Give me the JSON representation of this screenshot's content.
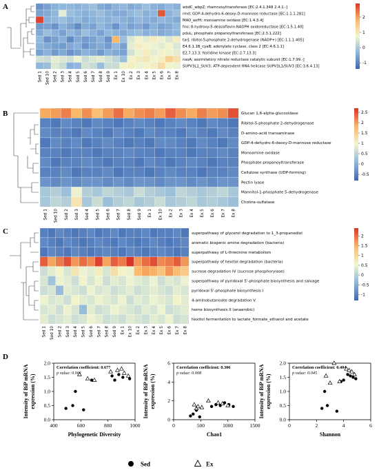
{
  "panel_labels": [
    "A",
    "B",
    "C",
    "D"
  ],
  "colors": {
    "low": "#3d66b0",
    "mid": "#f2f6cf",
    "high": "#d93428"
  },
  "chart_data": [
    {
      "type": "heatmap",
      "panel": "A",
      "columns": [
        "Sed 1",
        "Sed 10",
        "Sed 2",
        "Sed 3",
        "Sed 4",
        "Sed 5",
        "Sed 6",
        "Sed 7",
        "Sed 8",
        "Sed 9",
        "Ex 1",
        "Ex 10",
        "Ex 2",
        "Ex 3",
        "Ex 4",
        "Ex 5",
        "Ex 6",
        "Ex 7",
        "Ex 8"
      ],
      "rows": [
        "wbdC_wbpZ; rhamnosyltransferase [EC:2.4.1.348 2.4.1.-]",
        "rmd; GDP-4-dehydro-6-deoxy-D-mannose reductase [EC:1.1.1.281]",
        "MAO_aofH; monoamine oxidase [EC:1.4.3.4]",
        "fno; 8-hydroxy-5-deazaflavin:NADPH oxidoreductase [EC:1.5.1.40]",
        "pduL; phosphate propanoyltransferase [EC:2.3.1.222]",
        "tarJ; ribitol-5-phosphate 2-dehydrogenase (NADP+) [EC:1.1.1.405]",
        "E4.6.1.1B_cyaB; adenylate cyclase, class 2 [EC:4.6.1.1]",
        "E2.7.13.3; histidine kinase [EC:2.7.13.3]",
        "nasA; assimilatory nitrate reductase catalytic subunit [EC:1.7.99.-]",
        "SUPV3L1_SUV3; ATP-dependent RNA helicase SUPV3L1/SUV3 [EC:3.6.4.13]"
      ],
      "values": [
        [
          -0.8,
          -0.6,
          -0.4,
          -0.3,
          -0.3,
          -0.4,
          -0.3,
          -0.2,
          -0.5,
          -0.6,
          -0.4,
          -0.3,
          -0.5,
          -0.4,
          -0.2,
          -0.4,
          -0.5,
          -0.3,
          -0.4
        ],
        [
          -0.6,
          -0.5,
          -0.3,
          0.6,
          -0.2,
          -0.3,
          -0.4,
          -0.3,
          -0.2,
          -0.4,
          -0.5,
          -0.5,
          -0.3,
          -0.2,
          -0.4,
          -0.3,
          2.6,
          -0.4,
          -0.2
        ],
        [
          2.8,
          -0.4,
          -0.3,
          -0.2,
          -0.4,
          -0.3,
          -0.5,
          -0.4,
          -0.3,
          -0.4,
          -0.3,
          -0.4,
          -0.5,
          -0.3,
          -0.4,
          -0.5,
          -0.3,
          -0.4,
          -0.5
        ],
        [
          -0.7,
          -0.6,
          -0.8,
          -0.4,
          -0.6,
          -0.9,
          -0.5,
          -0.6,
          -0.3,
          -0.5,
          -0.8,
          -0.4,
          -0.6,
          -0.5,
          -0.7,
          -0.4,
          -0.6,
          -0.5,
          -0.3
        ],
        [
          -0.5,
          -0.2,
          -0.4,
          -0.6,
          -0.3,
          -0.5,
          -0.2,
          -0.4,
          -0.6,
          -0.3,
          -0.4,
          -0.5,
          -0.3,
          -0.2,
          -0.4,
          -0.3,
          -0.5,
          -0.4,
          -0.3
        ],
        [
          -0.3,
          -0.8,
          -0.6,
          -0.4,
          -0.9,
          -0.5,
          -0.7,
          -0.6,
          -0.4,
          -0.8,
          1.8,
          -0.2,
          0.5,
          0.8,
          0.6,
          0.9,
          0.7,
          0.5,
          0.9
        ],
        [
          -0.4,
          -0.5,
          -0.6,
          -0.7,
          -0.5,
          -0.4,
          -0.8,
          -0.6,
          -0.5,
          -0.7,
          -0.3,
          -0.6,
          0.6,
          0.9,
          0.8,
          0.7,
          0.6,
          0.8,
          0.5
        ],
        [
          -0.6,
          -0.4,
          -0.7,
          -0.5,
          -0.8,
          -0.6,
          -0.4,
          -0.5,
          -0.7,
          -0.4,
          -0.5,
          -0.6,
          0.4,
          0.7,
          0.9,
          0.6,
          0.8,
          0.7,
          0.6
        ],
        [
          0.4,
          0.3,
          0.6,
          0.5,
          0.4,
          0.7,
          0.3,
          0.5,
          0.6,
          0.4,
          0.2,
          -0.2,
          0.8,
          0.9,
          1.0,
          0.8,
          0.9,
          1.4,
          1.1
        ],
        [
          -0.3,
          -0.2,
          0.5,
          0.3,
          -0.4,
          -0.3,
          0.4,
          0.3,
          -0.2,
          0.3,
          0.3,
          0.8,
          0.9,
          0.7,
          0.8,
          0.9,
          1.2,
          0.8,
          0.7
        ]
      ],
      "colorbar": {
        "ticks": [
          2,
          1,
          0,
          -1
        ],
        "range": [
          -1.4,
          2.9
        ]
      }
    },
    {
      "type": "heatmap",
      "panel": "B",
      "columns": [
        "Sed 1",
        "Sed 10",
        "Sed 2",
        "Sed 3",
        "Sed 4",
        "Sed 5",
        "Sed 6",
        "Sed 7",
        "Sed 8",
        "Sed 9",
        "Ex 1",
        "Ex 10",
        "Ex 2",
        "Ex 3",
        "Ex 4",
        "Ex 5",
        "Ex 6",
        "Ex 7",
        "Ex 8"
      ],
      "rows": [
        "Glucan 1,6-alpha-glucosidase",
        "Ribitol-5-phosphate 2-dehydrogenase",
        "D-amino-acid transaminase",
        "GDP-4-dehydro-6-deoxy-D-mannose reductase",
        "Monoamine oxidase",
        "Phosphate propanoyltransferase",
        "Cellulose synthase (UDP-forming)",
        "Pectin lyase",
        "Mannitol-1-phosphate 5-dehydrogenase",
        "Choline-sulfatase"
      ],
      "values": [
        [
          1.9,
          2.0,
          2.2,
          1.8,
          2.1,
          1.7,
          2.0,
          2.3,
          1.9,
          2.1,
          2.2,
          2.0,
          2.4,
          2.1,
          1.9,
          2.2,
          2.0,
          2.1,
          2.5
        ],
        [
          -0.5,
          -0.6,
          -0.4,
          -0.5,
          -0.6,
          -0.4,
          -0.5,
          -0.6,
          -0.5,
          -0.4,
          -0.5,
          -0.6,
          -0.5,
          -0.4,
          -0.5,
          -0.6,
          -0.4,
          -0.5,
          -0.6
        ],
        [
          -0.4,
          -0.5,
          -0.5,
          -0.6,
          -0.4,
          -0.5,
          -0.6,
          -0.4,
          -0.5,
          -0.6,
          -0.4,
          -0.5,
          -0.5,
          -0.6,
          -0.4,
          -0.5,
          -0.6,
          -0.4,
          -0.5
        ],
        [
          -0.6,
          -0.4,
          -0.5,
          -0.4,
          -0.6,
          -0.5,
          -0.4,
          -0.5,
          -0.6,
          -0.5,
          -0.6,
          -0.4,
          -0.4,
          -0.5,
          -0.6,
          -0.4,
          -0.5,
          -0.6,
          -0.4
        ],
        [
          -0.5,
          -0.5,
          -0.6,
          -0.5,
          -0.5,
          -0.6,
          -0.5,
          -0.5,
          -0.4,
          -0.5,
          -0.5,
          -0.6,
          -0.5,
          -0.5,
          -0.6,
          -0.5,
          -0.5,
          -0.4,
          -0.5
        ],
        [
          -0.4,
          -0.6,
          -0.5,
          -0.5,
          -0.4,
          -0.5,
          -0.6,
          -0.5,
          -0.5,
          -0.6,
          -0.4,
          -0.5,
          -0.6,
          -0.5,
          -0.4,
          -0.5,
          -0.6,
          -0.5,
          -0.5
        ],
        [
          -0.5,
          -0.5,
          -0.4,
          -0.6,
          -0.5,
          -0.5,
          -0.4,
          -0.6,
          -0.5,
          -0.5,
          -0.6,
          -0.5,
          -0.4,
          -0.5,
          -0.5,
          -0.6,
          -0.5,
          -0.5,
          -0.4
        ],
        [
          -0.3,
          -0.4,
          -0.3,
          -0.4,
          -0.3,
          -0.3,
          -0.4,
          -0.3,
          -0.4,
          -0.3,
          -0.3,
          -0.4,
          -0.3,
          -0.3,
          -0.4,
          -0.3,
          -0.4,
          -0.3,
          -0.3
        ],
        [
          0.3,
          0.4,
          0.2,
          0.9,
          0.4,
          0.3,
          0.5,
          0.4,
          0.3,
          0.6,
          0.4,
          0.3,
          0.2,
          0.5,
          0.4,
          0.3,
          0.4,
          0.5,
          0.3
        ],
        [
          0.3,
          0.5,
          0.4,
          1.2,
          0.3,
          0.6,
          0.2,
          0.4,
          0.5,
          0.3,
          0.4,
          0.6,
          0.3,
          0.4,
          0.5,
          0.3,
          0.4,
          0.3,
          0.2
        ]
      ],
      "colorbar": {
        "ticks": [
          2.5,
          2,
          1.5,
          1,
          0.5,
          0,
          -0.5
        ],
        "range": [
          -0.8,
          2.7
        ]
      }
    },
    {
      "type": "heatmap",
      "panel": "C",
      "columns": [
        "Sed 1",
        "Sed 10",
        "Sed 2",
        "Sed 3",
        "Sed 4",
        "Sed 5",
        "Sed 6",
        "Sed 7",
        "Sed 8",
        "Sed 9",
        "Ex 1",
        "Ex 10",
        "Ex 2",
        "Ex 3",
        "Ex 4",
        "Ex 5",
        "Ex 6",
        "Ex 7",
        "Ex 8"
      ],
      "rows": [
        "superpathway of glycerol degradation to 1_3-propanediol",
        "aromatic biogenic amine degradation (bacteria)",
        "superpathway of L-threonine metabolism",
        "superpathway of hexitol degradation (bacteria)",
        "sucrose degradation IV (sucrose phosphorylase)",
        "superpathway of pyridoxal 5'-phosphate biosynthesis and salvage",
        "pyridoxal 5'-phosphate biosynthesis I",
        "4-aminobutanoate degradation V",
        "heme biosynthesis II (anaerobic)",
        "hexitol fermentation to lactate_formate_ethanol and acetate"
      ],
      "values": [
        [
          -1.0,
          -1.1,
          -0.9,
          -1.0,
          -1.1,
          -1.0,
          -0.9,
          -1.1,
          -1.0,
          -0.9,
          -1.1,
          -1.0,
          -1.0,
          -0.9,
          -1.1,
          -1.0,
          -1.0,
          -0.9,
          -1.1
        ],
        [
          -0.9,
          -1.0,
          -1.1,
          -0.9,
          -1.0,
          -1.1,
          -1.0,
          -0.9,
          -1.0,
          -1.1,
          -0.9,
          -1.0,
          -1.1,
          -1.0,
          -0.9,
          -1.0,
          -1.1,
          -1.0,
          -0.9
        ],
        [
          -1.1,
          -0.9,
          -1.0,
          -1.1,
          -0.9,
          -1.0,
          -1.1,
          -1.0,
          -0.9,
          -1.0,
          -1.1,
          -0.9,
          -1.0,
          -1.1,
          -1.0,
          -0.9,
          -1.0,
          -1.1,
          -1.0
        ],
        [
          2.1,
          1.6,
          1.9,
          2.2,
          1.7,
          2.0,
          1.8,
          2.3,
          1.6,
          2.1,
          1.9,
          2.4,
          1.7,
          2.0,
          2.2,
          1.8,
          1.9,
          2.1,
          1.7
        ],
        [
          0.2,
          0.4,
          0.6,
          0.3,
          0.8,
          0.5,
          0.4,
          0.7,
          0.3,
          0.9,
          0.6,
          0.5,
          1.4,
          1.6,
          1.5,
          1.3,
          1.7,
          1.4,
          1.2
        ],
        [
          0.3,
          -0.2,
          0.5,
          0.4,
          0.2,
          0.6,
          0.3,
          0.5,
          0.2,
          0.4,
          0.3,
          0.5,
          0.4,
          0.3,
          0.5,
          0.2,
          0.4,
          0.3,
          0.5
        ],
        [
          0.2,
          0.3,
          -0.3,
          0.4,
          0.3,
          0.2,
          0.5,
          0.3,
          0.4,
          0.2,
          0.3,
          0.4,
          0.2,
          0.3,
          0.4,
          0.3,
          0.2,
          0.4,
          0.3
        ],
        [
          0.5,
          0.3,
          0.4,
          0.2,
          0.6,
          0.4,
          0.3,
          0.5,
          0.4,
          0.3,
          0.5,
          0.2,
          0.4,
          0.3,
          0.5,
          0.4,
          0.3,
          0.6,
          0.4
        ],
        [
          0.3,
          0.4,
          0.2,
          0.5,
          0.3,
          -0.3,
          0.4,
          0.2,
          0.3,
          0.5,
          0.4,
          0.3,
          0.2,
          0.4,
          0.3,
          0.5,
          0.2,
          0.3,
          0.4
        ],
        [
          0.4,
          0.2,
          0.3,
          0.4,
          0.2,
          0.3,
          0.5,
          0.4,
          0.2,
          0.3,
          0.2,
          0.4,
          0.3,
          0.2,
          0.4,
          0.3,
          0.5,
          0.2,
          0.3
        ]
      ],
      "colorbar": {
        "ticks": [
          2,
          1.5,
          1,
          0.5,
          0,
          -0.5,
          -1
        ],
        "range": [
          -1.3,
          2.4
        ]
      }
    },
    {
      "type": "scatter",
      "panel": "D",
      "xlabel": "Phylogenetic Diversity",
      "ylabel": "Intensity of BiP mRNA expression (%)",
      "xlim": [
        400,
        1000
      ],
      "xticks": [
        400,
        600,
        800,
        1000
      ],
      "ylim": [
        0.0,
        2.0
      ],
      "yticks": [
        0.0,
        0.5,
        1.0,
        1.5,
        2.0
      ],
      "annotation": "Correlation coefficient: 0.677",
      "pvalue": "p value: 0.001",
      "series": [
        {
          "name": "Sed",
          "x": [
            490,
            540,
            560,
            620,
            680,
            830,
            850,
            880,
            910,
            960
          ],
          "y": [
            0.4,
            0.5,
            1.0,
            0.35,
            1.4,
            1.55,
            1.4,
            1.6,
            1.5,
            1.45
          ]
        },
        {
          "name": "Ex",
          "x": [
            590,
            650,
            700,
            820,
            870,
            900,
            920,
            950
          ],
          "y": [
            1.6,
            1.45,
            1.4,
            1.7,
            1.75,
            1.8,
            1.65,
            1.55
          ]
        }
      ]
    },
    {
      "type": "scatter",
      "panel": "D",
      "xlabel": "Chao1",
      "ylabel": "Intensity of BiP mRNA expression (%)",
      "xlim": [
        0,
        1500
      ],
      "xticks": [
        0,
        500,
        1000,
        1500
      ],
      "ylim": [
        0,
        6
      ],
      "yticks": [
        0,
        2,
        4,
        6
      ],
      "annotation": "Correlation coefficient: 0.306",
      "pvalue": "p value: 0.008",
      "series": [
        {
          "name": "Sed",
          "x": [
            310,
            360,
            420,
            480,
            700,
            780,
            860,
            940,
            1020,
            1100
          ],
          "y": [
            0.4,
            0.6,
            1.0,
            0.3,
            1.4,
            1.6,
            1.5,
            1.8,
            1.6,
            1.4
          ]
        },
        {
          "name": "Ex",
          "x": [
            380,
            420,
            450,
            520,
            640,
            820,
            900,
            1000
          ],
          "y": [
            1.6,
            1.2,
            1.4,
            1.3,
            2.0,
            1.8,
            1.7,
            1.5
          ]
        }
      ]
    },
    {
      "type": "scatter",
      "panel": "D",
      "xlabel": "Shannon",
      "ylabel": "Intensity of BiP mRNA expression (%)",
      "xlim": [
        0,
        6
      ],
      "xticks": [
        0,
        2,
        4,
        6
      ],
      "ylim": [
        0.0,
        2.0
      ],
      "yticks": [
        0.0,
        0.5,
        1.0,
        1.5,
        2.0
      ],
      "annotation": "Correlation coefficient: 0.404",
      "pvalue": "p value: 0.045",
      "series": [
        {
          "name": "Sed",
          "x": [
            2.4,
            2.6,
            2.8,
            3.5,
            3.8,
            4.0,
            4.3,
            4.5,
            4.7,
            4.9
          ],
          "y": [
            0.4,
            1.0,
            0.5,
            0.3,
            1.35,
            1.4,
            1.6,
            1.55,
            1.5,
            1.45
          ]
        },
        {
          "name": "Ex",
          "x": [
            2.7,
            3.0,
            3.3,
            3.7,
            4.2,
            4.4,
            4.6,
            4.8
          ],
          "y": [
            1.55,
            1.3,
            2.0,
            1.35,
            1.8,
            1.75,
            1.7,
            1.6
          ]
        }
      ]
    }
  ],
  "legend": {
    "sed": "Sed",
    "ex": "Ex"
  }
}
